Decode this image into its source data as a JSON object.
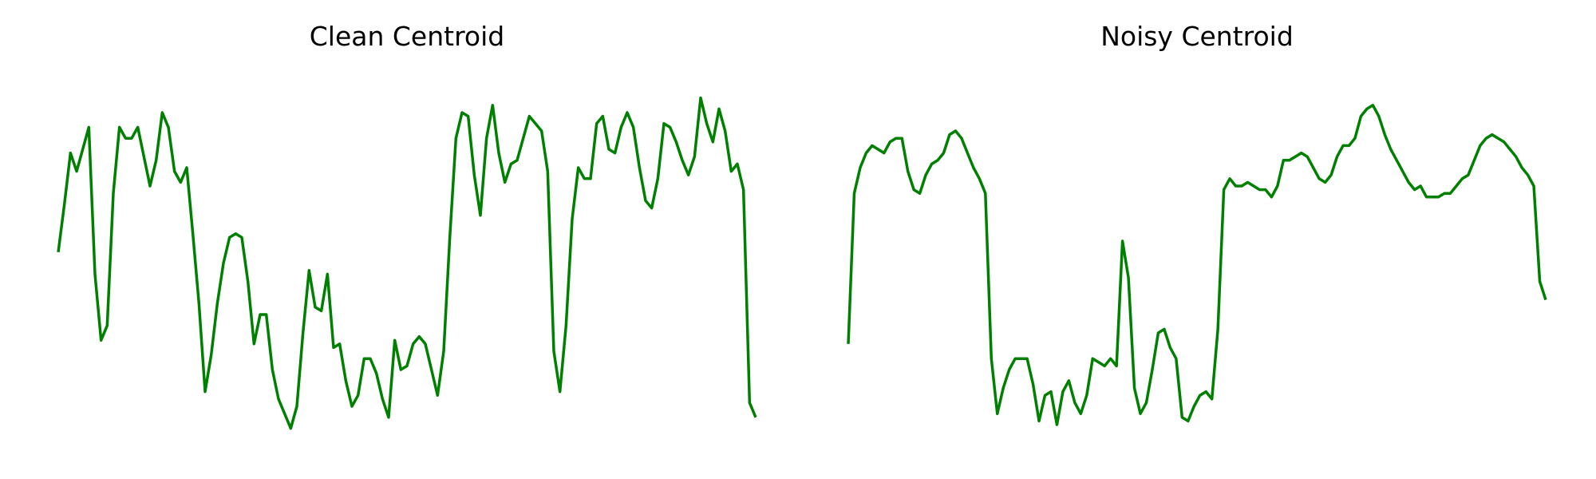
{
  "chart_data": [
    {
      "type": "line",
      "title": "Clean Centroid",
      "xlabel": "",
      "ylabel": "",
      "axes_visible": false,
      "grid": false,
      "color": "#008000",
      "ylim": [
        0,
        1
      ],
      "values": [
        0.52,
        0.65,
        0.79,
        0.74,
        0.8,
        0.86,
        0.46,
        0.28,
        0.32,
        0.68,
        0.86,
        0.83,
        0.83,
        0.86,
        0.78,
        0.7,
        0.77,
        0.9,
        0.86,
        0.74,
        0.71,
        0.75,
        0.57,
        0.38,
        0.14,
        0.24,
        0.38,
        0.49,
        0.56,
        0.57,
        0.56,
        0.44,
        0.27,
        0.35,
        0.35,
        0.2,
        0.12,
        0.08,
        0.04,
        0.1,
        0.3,
        0.47,
        0.37,
        0.36,
        0.46,
        0.26,
        0.27,
        0.17,
        0.1,
        0.13,
        0.23,
        0.23,
        0.19,
        0.12,
        0.07,
        0.28,
        0.2,
        0.21,
        0.27,
        0.29,
        0.27,
        0.2,
        0.13,
        0.25,
        0.56,
        0.83,
        0.9,
        0.89,
        0.73,
        0.62,
        0.83,
        0.92,
        0.79,
        0.71,
        0.76,
        0.77,
        0.83,
        0.89,
        0.87,
        0.85,
        0.74,
        0.25,
        0.14,
        0.32,
        0.61,
        0.75,
        0.72,
        0.72,
        0.87,
        0.89,
        0.8,
        0.79,
        0.86,
        0.9,
        0.86,
        0.75,
        0.66,
        0.64,
        0.72,
        0.87,
        0.86,
        0.82,
        0.77,
        0.73,
        0.78,
        0.94,
        0.87,
        0.82,
        0.91,
        0.85,
        0.74,
        0.76,
        0.69,
        0.11,
        0.07
      ]
    },
    {
      "type": "line",
      "title": "Noisy Centroid",
      "xlabel": "",
      "ylabel": "",
      "axes_visible": false,
      "grid": false,
      "color": "#008000",
      "ylim": [
        0,
        1
      ],
      "values": [
        0.27,
        0.68,
        0.75,
        0.79,
        0.81,
        0.8,
        0.79,
        0.82,
        0.83,
        0.83,
        0.74,
        0.69,
        0.68,
        0.73,
        0.76,
        0.77,
        0.79,
        0.84,
        0.85,
        0.83,
        0.79,
        0.75,
        0.72,
        0.68,
        0.23,
        0.08,
        0.15,
        0.2,
        0.23,
        0.23,
        0.23,
        0.16,
        0.06,
        0.13,
        0.14,
        0.05,
        0.14,
        0.17,
        0.11,
        0.08,
        0.13,
        0.23,
        0.22,
        0.21,
        0.23,
        0.21,
        0.55,
        0.45,
        0.15,
        0.08,
        0.11,
        0.2,
        0.3,
        0.31,
        0.26,
        0.23,
        0.07,
        0.06,
        0.1,
        0.13,
        0.14,
        0.12,
        0.31,
        0.69,
        0.72,
        0.7,
        0.7,
        0.71,
        0.7,
        0.69,
        0.69,
        0.67,
        0.7,
        0.77,
        0.77,
        0.78,
        0.79,
        0.78,
        0.75,
        0.72,
        0.71,
        0.73,
        0.78,
        0.81,
        0.81,
        0.83,
        0.89,
        0.91,
        0.92,
        0.89,
        0.84,
        0.8,
        0.77,
        0.74,
        0.71,
        0.69,
        0.7,
        0.67,
        0.67,
        0.67,
        0.68,
        0.68,
        0.7,
        0.72,
        0.73,
        0.77,
        0.81,
        0.83,
        0.84,
        0.83,
        0.82,
        0.8,
        0.78,
        0.75,
        0.73,
        0.7,
        0.44,
        0.39
      ]
    }
  ]
}
